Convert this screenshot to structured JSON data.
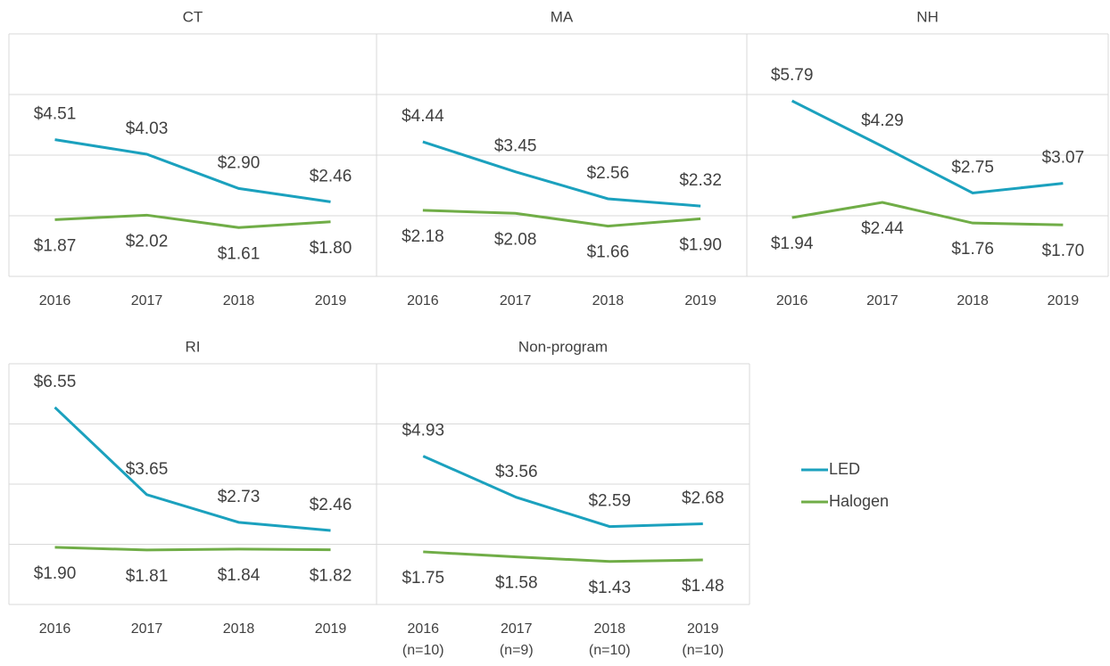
{
  "chart_data": [
    {
      "type": "line",
      "title": "CT",
      "categories": [
        "2016",
        "2017",
        "2018",
        "2019"
      ],
      "ylim": [
        0,
        8
      ],
      "yticks": [
        0,
        2,
        4,
        6,
        8
      ],
      "grid": true,
      "series": [
        {
          "name": "LED",
          "color": "#1ba1be",
          "values": [
            4.51,
            4.03,
            2.9,
            2.46
          ],
          "value_labels": [
            "$4.51",
            "$4.03",
            "$2.90",
            "$2.46"
          ]
        },
        {
          "name": "Halogen",
          "color": "#70ad47",
          "values": [
            1.87,
            2.02,
            1.61,
            1.8
          ],
          "value_labels": [
            "$1.87",
            "$2.02",
            "$1.61",
            "$1.80"
          ]
        }
      ]
    },
    {
      "type": "line",
      "title": "MA",
      "categories": [
        "2016",
        "2017",
        "2018",
        "2019"
      ],
      "ylim": [
        0,
        8
      ],
      "yticks": [
        0,
        2,
        4,
        6,
        8
      ],
      "grid": true,
      "series": [
        {
          "name": "LED",
          "color": "#1ba1be",
          "values": [
            4.44,
            3.45,
            2.56,
            2.32
          ],
          "value_labels": [
            "$4.44",
            "$3.45",
            "$2.56",
            "$2.32"
          ]
        },
        {
          "name": "Halogen",
          "color": "#70ad47",
          "values": [
            2.18,
            2.08,
            1.66,
            1.9
          ],
          "value_labels": [
            "$2.18",
            "$2.08",
            "$1.66",
            "$1.90"
          ]
        }
      ]
    },
    {
      "type": "line",
      "title": "NH",
      "categories": [
        "2016",
        "2017",
        "2018",
        "2019"
      ],
      "ylim": [
        0,
        8
      ],
      "yticks": [
        0,
        2,
        4,
        6,
        8
      ],
      "grid": true,
      "series": [
        {
          "name": "LED",
          "color": "#1ba1be",
          "values": [
            5.79,
            4.29,
            2.75,
            3.07
          ],
          "value_labels": [
            "$5.79",
            "$4.29",
            "$2.75",
            "$3.07"
          ]
        },
        {
          "name": "Halogen",
          "color": "#70ad47",
          "values": [
            1.94,
            2.44,
            1.76,
            1.7
          ],
          "value_labels": [
            "$1.94",
            "$2.44",
            "$1.76",
            "$1.70"
          ]
        }
      ]
    },
    {
      "type": "line",
      "title": "RI",
      "categories": [
        "2016",
        "2017",
        "2018",
        "2019"
      ],
      "ylim": [
        0,
        8
      ],
      "yticks": [
        0,
        2,
        4,
        6,
        8
      ],
      "grid": true,
      "series": [
        {
          "name": "LED",
          "color": "#1ba1be",
          "values": [
            6.55,
            3.65,
            2.73,
            2.46
          ],
          "value_labels": [
            "$6.55",
            "$3.65",
            "$2.73",
            "$2.46"
          ]
        },
        {
          "name": "Halogen",
          "color": "#70ad47",
          "values": [
            1.9,
            1.81,
            1.84,
            1.82
          ],
          "value_labels": [
            "$1.90",
            "$1.81",
            "$1.84",
            "$1.82"
          ]
        }
      ]
    },
    {
      "type": "line",
      "title": "Non-program",
      "categories": [
        "2016\n(n=10)",
        "2017\n(n=9)",
        "2018\n(n=10)",
        "2019\n(n=10)"
      ],
      "ylim": [
        0,
        8
      ],
      "yticks": [
        0,
        2,
        4,
        6,
        8
      ],
      "grid": true,
      "series": [
        {
          "name": "LED",
          "color": "#1ba1be",
          "values": [
            4.93,
            3.56,
            2.59,
            2.68
          ],
          "value_labels": [
            "$4.93",
            "$3.56",
            "$2.59",
            "$2.68"
          ]
        },
        {
          "name": "Halogen",
          "color": "#70ad47",
          "values": [
            1.75,
            1.58,
            1.43,
            1.48
          ],
          "value_labels": [
            "$1.75",
            "$1.58",
            "$1.43",
            "$1.48"
          ]
        }
      ]
    }
  ]
}
